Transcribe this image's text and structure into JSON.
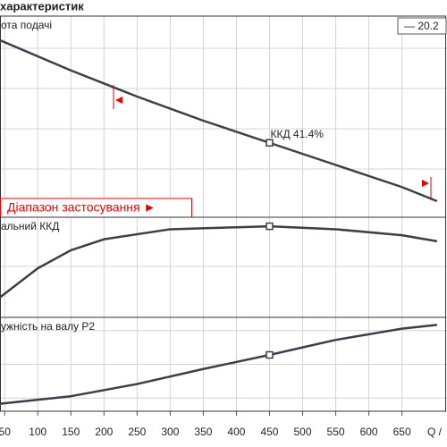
{
  "title": "характеристик",
  "chart_data": [
    {
      "type": "line",
      "label": "ота подачі",
      "legend": "— 20.2",
      "annotation": "ККД  41.4%",
      "range_label": "Діапазон застосування ►",
      "x": [
        43,
        150,
        250,
        350,
        450,
        550,
        650,
        703
      ],
      "series": [
        {
          "color": "#3a3f4a",
          "values": [
            88,
            73,
            60,
            48,
            37,
            26,
            15,
            8
          ]
        }
      ],
      "duty_point": 4,
      "xlim": [
        43,
        718
      ],
      "xticks": [
        50,
        100,
        150,
        200,
        250,
        300,
        350,
        400,
        450,
        500,
        550,
        600,
        650
      ],
      "ylim": [
        0,
        100
      ],
      "yticks": [
        24,
        44,
        64,
        84
      ]
    },
    {
      "type": "line",
      "label": "альний ККД",
      "x": [
        43,
        100,
        150,
        200,
        300,
        400,
        450,
        550,
        650,
        703
      ],
      "series": [
        {
          "color": "#3a3f4a",
          "values": [
            20,
            49,
            67,
            78,
            88,
            90,
            91,
            88,
            82,
            76
          ]
        }
      ],
      "duty_point": 6,
      "xlim": [
        43,
        718
      ],
      "xticks": [
        50,
        100,
        150,
        200,
        250,
        300,
        350,
        400,
        450,
        500,
        550,
        600,
        650
      ],
      "ylim": [
        0,
        100
      ],
      "yticks": [
        51
      ]
    },
    {
      "type": "line",
      "label": "ужність на валу P2",
      "x": [
        43,
        150,
        250,
        350,
        450,
        550,
        650,
        703
      ],
      "series": [
        {
          "color": "#3a3f4a",
          "values": [
            8,
            16,
            29,
            45,
            60,
            76,
            88,
            92
          ]
        }
      ],
      "duty_point": 4,
      "xlim": [
        43,
        718
      ],
      "xticks": [
        50,
        100,
        150,
        200,
        250,
        300,
        350,
        400,
        450,
        500,
        550,
        600,
        650
      ],
      "ylim": [
        0,
        100
      ],
      "yticks": [
        14,
        50,
        86
      ],
      "xlabel": "Q /",
      "tick_labels": true
    }
  ]
}
